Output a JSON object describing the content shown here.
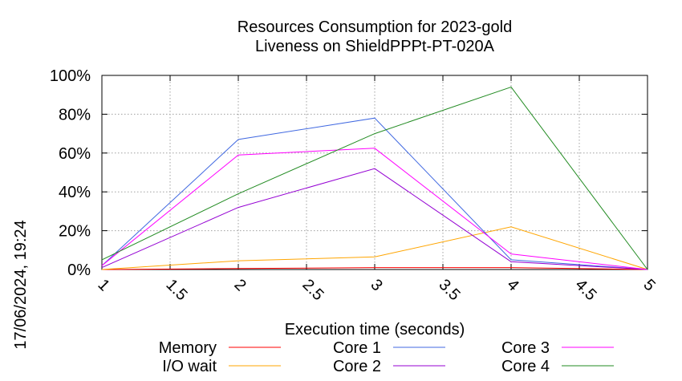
{
  "chart_data": {
    "type": "line",
    "title_line1": "Resources Consumption for 2023-gold",
    "title_line2": "Liveness on ShieldPPPt-PT-020A",
    "xlabel": "Execution time (seconds)",
    "timestamp": "17/06/2024, 19:24",
    "xlim": [
      1,
      5
    ],
    "ylim": [
      0,
      100
    ],
    "x_ticks": [
      "1",
      "1.5",
      "2",
      "2.5",
      "3",
      "3.5",
      "4",
      "4.5",
      "5"
    ],
    "y_ticks": [
      "0%",
      "20%",
      "40%",
      "60%",
      "80%",
      "100%"
    ],
    "grid": true,
    "legend_position": "bottom",
    "series": [
      {
        "name": "Memory",
        "color": "#ff0000",
        "x": [
          1,
          2,
          3,
          4,
          5
        ],
        "values": [
          0,
          0.5,
          1,
          1,
          0
        ]
      },
      {
        "name": "I/O wait",
        "color": "#ffa500",
        "x": [
          1,
          2,
          3,
          4,
          5
        ],
        "values": [
          0,
          4.5,
          6.5,
          22,
          0
        ]
      },
      {
        "name": "Core 1",
        "color": "#4169e1",
        "x": [
          1,
          2,
          3,
          4,
          5
        ],
        "values": [
          2,
          67,
          78,
          5,
          0
        ]
      },
      {
        "name": "Core 2",
        "color": "#9400d3",
        "x": [
          1,
          2,
          3,
          4,
          5
        ],
        "values": [
          1,
          32,
          52,
          4,
          0
        ]
      },
      {
        "name": "Core 3",
        "color": "#ff00ff",
        "x": [
          1,
          2,
          3,
          4,
          5
        ],
        "values": [
          2,
          59,
          62.5,
          8,
          0
        ]
      },
      {
        "name": "Core 4",
        "color": "#228b22",
        "x": [
          1,
          2,
          3,
          4,
          5
        ],
        "values": [
          5,
          39,
          70,
          94,
          0
        ]
      }
    ]
  }
}
